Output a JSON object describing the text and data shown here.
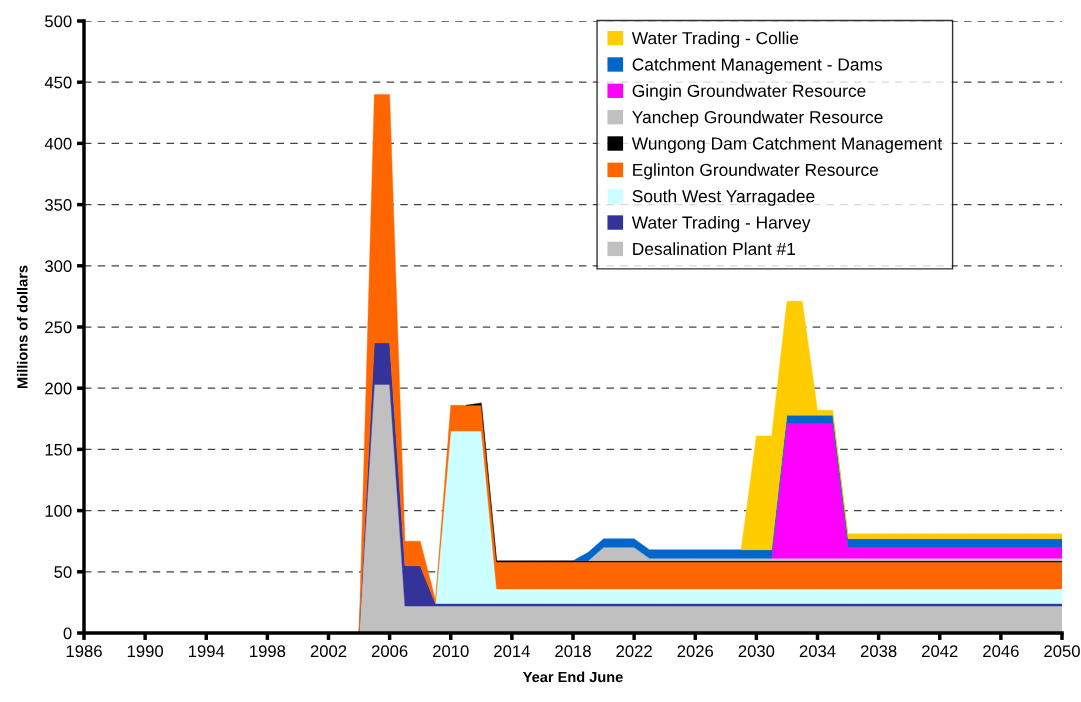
{
  "chart_data": {
    "type": "area",
    "stacked": true,
    "xlabel": "Year End June",
    "ylabel": "Millions of dollars",
    "x": [
      2003,
      2004,
      2005,
      2006,
      2007,
      2008,
      2009,
      2010,
      2011,
      2012,
      2013,
      2014,
      2015,
      2016,
      2017,
      2018,
      2019,
      2020,
      2021,
      2022,
      2023,
      2024,
      2025,
      2026,
      2027,
      2028,
      2029,
      2030,
      2031,
      2032,
      2033,
      2034,
      2035,
      2036,
      2037,
      2038,
      2039,
      2040,
      2041,
      2042,
      2043,
      2044,
      2045,
      2046,
      2047,
      2048,
      2049,
      2050
    ],
    "series": [
      {
        "name": "Desalination Plant #1",
        "color": "#c0c0c0",
        "values": [
          0,
          0,
          203,
          203,
          22,
          22,
          22,
          22,
          22,
          22,
          22,
          22,
          22,
          22,
          22,
          22,
          22,
          22,
          22,
          22,
          22,
          22,
          22,
          22,
          22,
          22,
          22,
          22,
          22,
          22,
          22,
          22,
          22,
          22,
          22,
          22,
          22,
          22,
          22,
          22,
          22,
          22,
          22,
          22,
          22,
          22,
          22,
          22
        ]
      },
      {
        "name": "Water Trading - Harvey",
        "color": "#333399",
        "values": [
          0,
          0,
          34,
          34,
          33,
          33,
          2,
          2,
          2,
          2,
          2,
          2,
          2,
          2,
          2,
          2,
          2,
          2,
          2,
          2,
          2,
          2,
          2,
          2,
          2,
          2,
          2,
          2,
          2,
          2,
          2,
          2,
          2,
          2,
          2,
          2,
          2,
          2,
          2,
          2,
          2,
          2,
          2,
          2,
          2,
          2,
          2,
          2
        ]
      },
      {
        "name": "South West Yarragadee",
        "color": "#ccffff",
        "values": [
          null,
          null,
          null,
          null,
          null,
          null,
          0,
          141,
          141,
          141,
          12,
          12,
          12,
          12,
          12,
          12,
          12,
          12,
          12,
          12,
          12,
          12,
          12,
          12,
          12,
          12,
          12,
          12,
          12,
          12,
          12,
          12,
          12,
          12,
          12,
          12,
          12,
          12,
          12,
          12,
          12,
          12,
          12,
          12,
          12,
          12,
          12,
          12
        ]
      },
      {
        "name": "Eglinton Groundwater Resource",
        "color": "#ff6600",
        "values": [
          0,
          0,
          203,
          203,
          20,
          20,
          3,
          21,
          21,
          21,
          22,
          22,
          22,
          22,
          22,
          22,
          22,
          22,
          22,
          22,
          22,
          22,
          22,
          22,
          22,
          22,
          22,
          22,
          22,
          22,
          22,
          22,
          22,
          22,
          22,
          22,
          22,
          22,
          22,
          22,
          22,
          22,
          22,
          22,
          22,
          22,
          22,
          22
        ]
      },
      {
        "name": "Wungong Dam Catchment Management",
        "color": "#000000",
        "values": [
          null,
          null,
          null,
          null,
          null,
          null,
          null,
          null,
          0,
          2,
          1,
          1,
          1,
          1,
          1,
          1,
          1,
          1,
          1,
          1,
          1,
          1,
          1,
          1,
          1,
          1,
          1,
          1,
          1,
          1,
          1,
          1,
          1,
          1,
          1,
          1,
          1,
          1,
          1,
          1,
          1,
          1,
          1,
          1,
          1,
          1,
          1,
          1
        ]
      },
      {
        "name": "Yanchep Groundwater Resource",
        "color": "#c0c0c0",
        "values": [
          null,
          null,
          null,
          null,
          null,
          null,
          null,
          null,
          null,
          null,
          null,
          null,
          null,
          null,
          null,
          null,
          0,
          11,
          11,
          11,
          2,
          2,
          2,
          2,
          2,
          2,
          2,
          2,
          2,
          2,
          2,
          2,
          2,
          2,
          2,
          2,
          2,
          2,
          2,
          2,
          2,
          2,
          2,
          2,
          2,
          2,
          2,
          2
        ]
      },
      {
        "name": "Gingin Groundwater Resource",
        "color": "#ff00ff",
        "values": [
          null,
          null,
          null,
          null,
          null,
          null,
          null,
          null,
          null,
          null,
          null,
          null,
          null,
          null,
          null,
          null,
          null,
          null,
          null,
          null,
          null,
          null,
          null,
          null,
          null,
          null,
          null,
          null,
          0,
          110,
          110,
          110,
          110,
          9,
          9,
          9,
          9,
          9,
          9,
          9,
          9,
          9,
          9,
          9,
          9,
          9,
          9,
          9
        ]
      },
      {
        "name": "Catchment Management - Dams",
        "color": "#0066cc",
        "values": [
          null,
          null,
          null,
          null,
          null,
          null,
          null,
          null,
          null,
          null,
          null,
          null,
          null,
          null,
          null,
          0,
          7,
          7,
          7,
          7,
          7,
          7,
          7,
          7,
          7,
          7,
          7,
          7,
          7,
          7,
          7,
          7,
          7,
          7,
          7,
          7,
          7,
          7,
          7,
          7,
          7,
          7,
          7,
          7,
          7,
          7,
          7,
          7
        ]
      },
      {
        "name": "Water Trading - Collie",
        "color": "#ffcc00",
        "values": [
          null,
          null,
          null,
          null,
          null,
          null,
          null,
          null,
          null,
          null,
          null,
          null,
          null,
          null,
          null,
          null,
          null,
          null,
          null,
          null,
          null,
          null,
          null,
          null,
          null,
          null,
          0,
          93,
          93,
          93,
          93,
          4,
          4,
          4,
          4,
          4,
          4,
          4,
          4,
          4,
          4,
          4,
          4,
          4,
          4,
          4,
          4,
          4
        ]
      }
    ],
    "xlim": [
      1986,
      2050
    ],
    "xticks": [
      1986,
      1990,
      1994,
      1998,
      2002,
      2006,
      2010,
      2014,
      2018,
      2022,
      2026,
      2030,
      2034,
      2038,
      2042,
      2046,
      2050
    ],
    "ylim": [
      0,
      500
    ],
    "yticks": [
      0,
      50,
      100,
      150,
      200,
      250,
      300,
      350,
      400,
      450,
      500
    ],
    "grid": "y",
    "legend": "top right"
  }
}
